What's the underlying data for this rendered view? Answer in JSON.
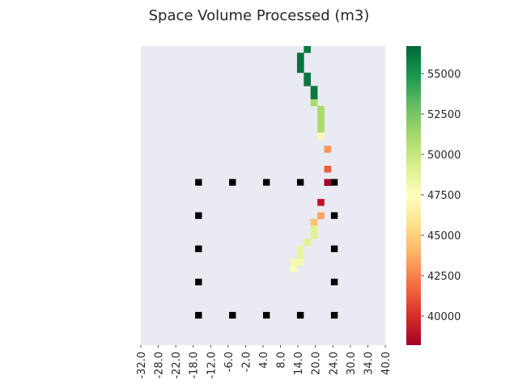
{
  "chart_data": {
    "type": "heatmap",
    "title": "Space Volume Processed (m3)",
    "xlabel": "",
    "ylabel": "",
    "x_tick_labels": [
      "-32.0",
      "-28.0",
      "-22.0",
      "-18.0",
      "-12.0",
      "-6.0",
      "-2.0",
      "4.0",
      "8.0",
      "14.0",
      "20.0",
      "24.0",
      "30.0",
      "34.0",
      "40.0"
    ],
    "colorbar": {
      "colormap": "RdYlGn",
      "vmin": 38200,
      "vmax": 56700,
      "tick_values": [
        40000,
        42500,
        45000,
        47500,
        50000,
        52500,
        55000
      ],
      "tick_labels": [
        "40000",
        "42500",
        "45000",
        "47500",
        "50000",
        "52500",
        "55000"
      ]
    },
    "background_color": "#eaeaf2",
    "marker_color": "#000000",
    "grid": false,
    "cells": [
      {
        "x": 6,
        "y": 0,
        "value": 56000
      },
      {
        "x": 5,
        "y": 1,
        "value": 56300
      },
      {
        "x": 5,
        "y": 2,
        "value": 56300
      },
      {
        "x": 5,
        "y": 3,
        "value": 56300
      },
      {
        "x": 6,
        "y": 4,
        "value": 56200
      },
      {
        "x": 6,
        "y": 5,
        "value": 56200
      },
      {
        "x": 7,
        "y": 6,
        "value": 56100
      },
      {
        "x": 7,
        "y": 7,
        "value": 56100
      },
      {
        "x": 7,
        "y": 8,
        "value": 51000
      },
      {
        "x": 8,
        "y": 9,
        "value": 51000
      },
      {
        "x": 8,
        "y": 10,
        "value": 51000
      },
      {
        "x": 8,
        "y": 11,
        "value": 51000
      },
      {
        "x": 8,
        "y": 12,
        "value": 51000
      },
      {
        "x": 8,
        "y": 13,
        "value": 47000
      },
      {
        "x": 9,
        "y": 15,
        "value": 43000
      },
      {
        "x": 9,
        "y": 18,
        "value": 41500
      },
      {
        "x": 9,
        "y": 20,
        "value": 38300
      },
      {
        "x": 8,
        "y": 23,
        "value": 39000
      },
      {
        "x": 8,
        "y": 25,
        "value": 43500
      },
      {
        "x": 7,
        "y": 26,
        "value": 44500
      },
      {
        "x": 7,
        "y": 27,
        "value": 49000
      },
      {
        "x": 7,
        "y": 28,
        "value": 49000
      },
      {
        "x": 6,
        "y": 29,
        "value": 49000
      },
      {
        "x": 5,
        "y": 30,
        "value": 48500
      },
      {
        "x": 5,
        "y": 31,
        "value": 48500
      },
      {
        "x": 4,
        "y": 32,
        "value": 48000
      },
      {
        "x": 5,
        "y": 32,
        "value": 48000
      },
      {
        "x": 4,
        "y": 33,
        "value": 47800
      }
    ],
    "markers": [
      {
        "x": -10,
        "y": 20
      },
      {
        "x": -5,
        "y": 20
      },
      {
        "x": 0,
        "y": 20
      },
      {
        "x": 5,
        "y": 20
      },
      {
        "x": 10,
        "y": 20
      },
      {
        "x": -10,
        "y": 25
      },
      {
        "x": 10,
        "y": 25
      },
      {
        "x": -10,
        "y": 30
      },
      {
        "x": 10,
        "y": 30
      },
      {
        "x": -10,
        "y": 35
      },
      {
        "x": 10,
        "y": 35
      },
      {
        "x": -10,
        "y": 40
      },
      {
        "x": -5,
        "y": 40
      },
      {
        "x": 0,
        "y": 40
      },
      {
        "x": 5,
        "y": 40
      },
      {
        "x": 10,
        "y": 40
      }
    ]
  }
}
